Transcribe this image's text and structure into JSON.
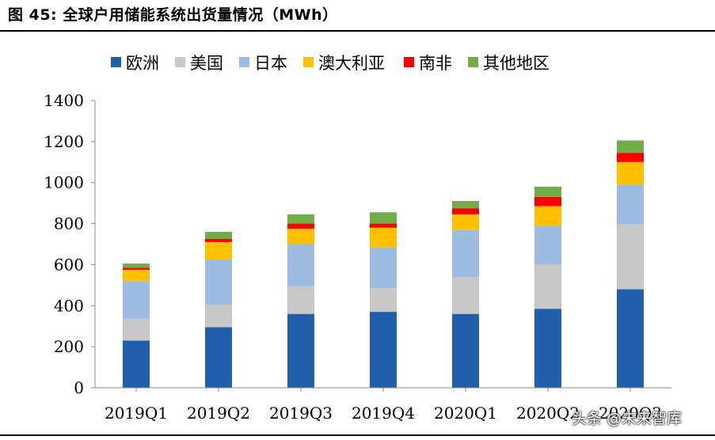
{
  "figure": {
    "title": "图 45: 全球户用储能系统出货量情况（MWh）"
  },
  "chart_data": {
    "type": "bar",
    "stacked": true,
    "categories": [
      "2019Q1",
      "2019Q2",
      "2019Q3",
      "2019Q4",
      "2020Q1",
      "2020Q2",
      "2020Q3"
    ],
    "ylim": [
      0,
      1400
    ],
    "yticks": [
      0,
      200,
      400,
      600,
      800,
      1000,
      1200,
      1400
    ],
    "legend_position": "top",
    "grid": false,
    "series": [
      {
        "name": "欧洲",
        "color": "#1f5fac",
        "values": [
          230,
          295,
          360,
          370,
          360,
          385,
          480
        ]
      },
      {
        "name": "美国",
        "color": "#c8c8c8",
        "values": [
          105,
          110,
          135,
          115,
          180,
          215,
          315
        ]
      },
      {
        "name": "日本",
        "color": "#9cbbe0",
        "values": [
          185,
          220,
          205,
          200,
          230,
          190,
          195
        ]
      },
      {
        "name": "澳大利亚",
        "color": "#ffc000",
        "values": [
          55,
          85,
          75,
          95,
          75,
          95,
          110
        ]
      },
      {
        "name": "南非",
        "color": "#ff0000",
        "values": [
          10,
          15,
          25,
          20,
          30,
          45,
          45
        ]
      },
      {
        "name": "其他地区",
        "color": "#70ad47",
        "values": [
          20,
          35,
          45,
          55,
          35,
          50,
          60
        ]
      }
    ]
  },
  "watermark": "头条 @未来智库"
}
